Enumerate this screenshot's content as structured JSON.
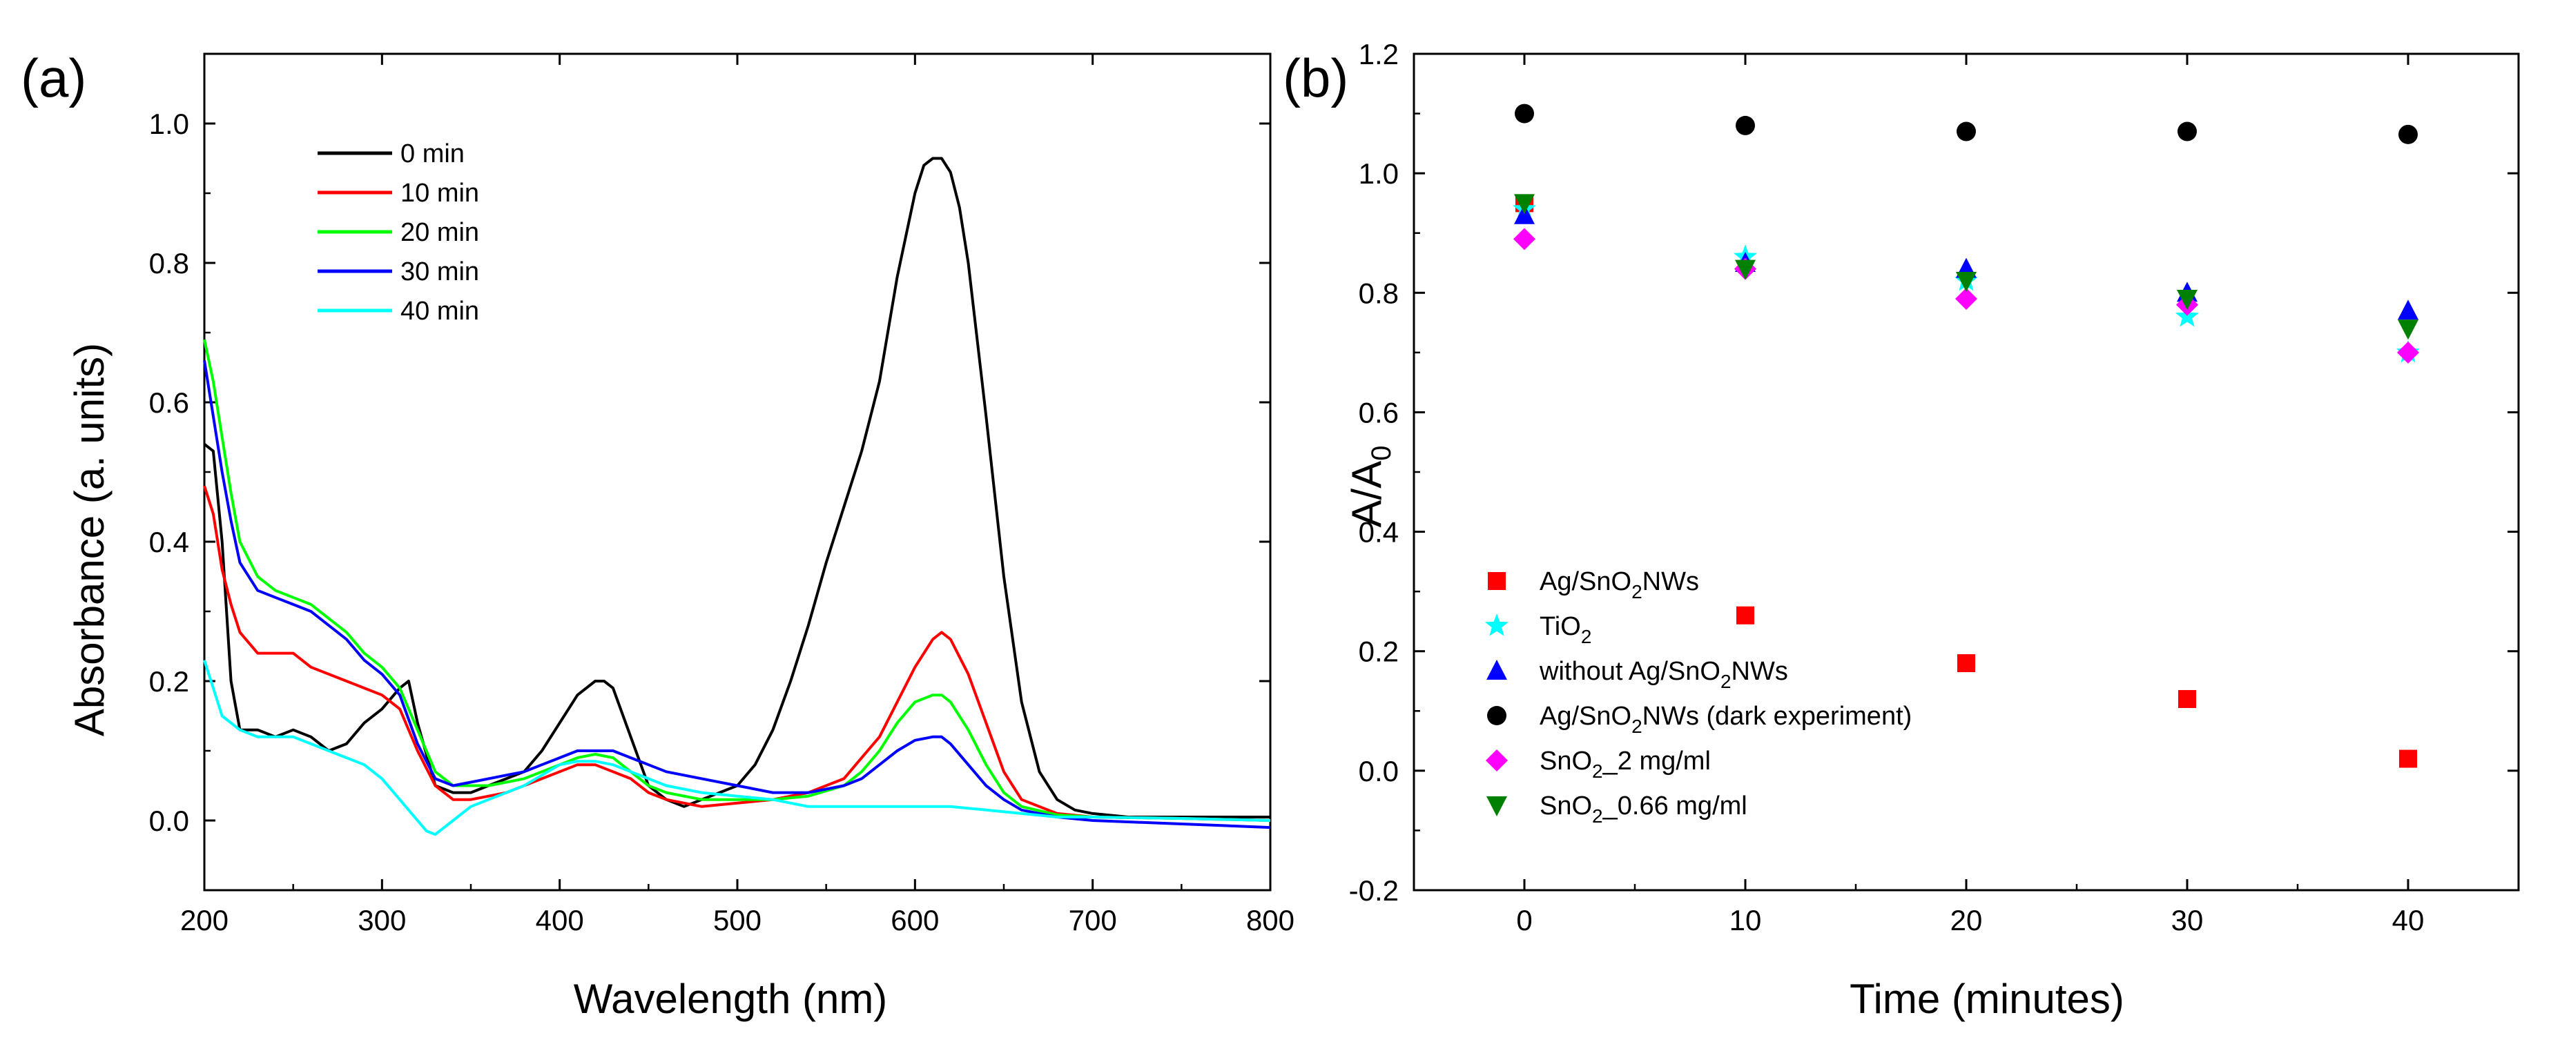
{
  "chart_data": [
    {
      "panel_label": "(a)",
      "type": "line",
      "xlabel": "Wavelength (nm)",
      "ylabel": "Absorbance (a. units)",
      "xlim": [
        200,
        800
      ],
      "ylim": [
        -0.1,
        1.1
      ],
      "xticks": [
        200,
        300,
        400,
        500,
        600,
        700,
        800
      ],
      "yticks": [
        0.0,
        0.2,
        0.4,
        0.6,
        0.8,
        1.0
      ],
      "xtick_labels": [
        "200",
        "300",
        "400",
        "500",
        "600",
        "700",
        "800"
      ],
      "ytick_labels": [
        "0.0",
        "0.2",
        "0.4",
        "0.6",
        "0.8",
        "1.0"
      ],
      "legend_position": "top-left",
      "series": [
        {
          "name": "0 min",
          "color": "#000000",
          "x": [
            200,
            205,
            210,
            215,
            220,
            230,
            240,
            250,
            260,
            270,
            280,
            290,
            300,
            310,
            315,
            320,
            330,
            340,
            350,
            360,
            370,
            380,
            390,
            400,
            410,
            420,
            425,
            430,
            440,
            450,
            460,
            470,
            480,
            490,
            500,
            510,
            520,
            530,
            540,
            550,
            560,
            570,
            580,
            590,
            600,
            605,
            610,
            615,
            620,
            625,
            630,
            640,
            650,
            660,
            670,
            680,
            690,
            700,
            720,
            750,
            800
          ],
          "y": [
            0.54,
            0.53,
            0.4,
            0.2,
            0.13,
            0.13,
            0.12,
            0.13,
            0.12,
            0.1,
            0.11,
            0.14,
            0.16,
            0.19,
            0.2,
            0.14,
            0.05,
            0.04,
            0.04,
            0.05,
            0.06,
            0.07,
            0.1,
            0.14,
            0.18,
            0.2,
            0.2,
            0.19,
            0.12,
            0.05,
            0.03,
            0.02,
            0.03,
            0.04,
            0.05,
            0.08,
            0.13,
            0.2,
            0.28,
            0.37,
            0.45,
            0.53,
            0.63,
            0.78,
            0.9,
            0.94,
            0.95,
            0.95,
            0.93,
            0.88,
            0.8,
            0.58,
            0.35,
            0.17,
            0.07,
            0.03,
            0.015,
            0.01,
            0.005,
            0.005,
            0.005
          ]
        },
        {
          "name": "10 min",
          "color": "#ff0000",
          "x": [
            200,
            205,
            210,
            215,
            220,
            230,
            240,
            250,
            260,
            270,
            280,
            290,
            300,
            310,
            320,
            330,
            340,
            350,
            360,
            370,
            380,
            390,
            400,
            410,
            420,
            430,
            440,
            450,
            460,
            480,
            500,
            520,
            540,
            560,
            570,
            580,
            590,
            600,
            610,
            615,
            620,
            630,
            640,
            650,
            660,
            680,
            700,
            750,
            800
          ],
          "y": [
            0.48,
            0.44,
            0.36,
            0.31,
            0.27,
            0.24,
            0.24,
            0.24,
            0.22,
            0.21,
            0.2,
            0.19,
            0.18,
            0.16,
            0.1,
            0.05,
            0.03,
            0.03,
            0.035,
            0.04,
            0.05,
            0.06,
            0.07,
            0.08,
            0.08,
            0.07,
            0.06,
            0.04,
            0.03,
            0.02,
            0.025,
            0.03,
            0.04,
            0.06,
            0.09,
            0.12,
            0.17,
            0.22,
            0.26,
            0.27,
            0.26,
            0.21,
            0.14,
            0.07,
            0.03,
            0.01,
            0.005,
            0.003,
            0.0
          ]
        },
        {
          "name": "20 min",
          "color": "#00ff00",
          "x": [
            200,
            205,
            210,
            215,
            220,
            230,
            240,
            250,
            260,
            270,
            280,
            290,
            300,
            310,
            320,
            330,
            340,
            350,
            360,
            370,
            380,
            390,
            400,
            410,
            420,
            430,
            440,
            450,
            460,
            480,
            500,
            520,
            540,
            560,
            570,
            580,
            590,
            600,
            610,
            615,
            620,
            630,
            640,
            650,
            660,
            680,
            700,
            750,
            800
          ],
          "y": [
            0.69,
            0.63,
            0.55,
            0.47,
            0.4,
            0.35,
            0.33,
            0.32,
            0.31,
            0.29,
            0.27,
            0.24,
            0.22,
            0.19,
            0.13,
            0.07,
            0.05,
            0.05,
            0.05,
            0.055,
            0.06,
            0.07,
            0.08,
            0.09,
            0.095,
            0.09,
            0.07,
            0.05,
            0.04,
            0.03,
            0.03,
            0.03,
            0.035,
            0.05,
            0.07,
            0.1,
            0.14,
            0.17,
            0.18,
            0.18,
            0.17,
            0.13,
            0.08,
            0.04,
            0.02,
            0.008,
            0.005,
            0.003,
            0.0
          ]
        },
        {
          "name": "30 min",
          "color": "#0000ff",
          "x": [
            200,
            205,
            210,
            215,
            220,
            230,
            240,
            250,
            260,
            270,
            280,
            290,
            300,
            310,
            320,
            330,
            340,
            350,
            360,
            370,
            380,
            390,
            400,
            410,
            420,
            430,
            440,
            450,
            460,
            480,
            500,
            520,
            540,
            560,
            570,
            580,
            590,
            600,
            610,
            615,
            620,
            630,
            640,
            650,
            660,
            680,
            700,
            750,
            800
          ],
          "y": [
            0.66,
            0.58,
            0.5,
            0.43,
            0.37,
            0.33,
            0.32,
            0.31,
            0.3,
            0.28,
            0.26,
            0.23,
            0.21,
            0.18,
            0.11,
            0.06,
            0.05,
            0.055,
            0.06,
            0.065,
            0.07,
            0.08,
            0.09,
            0.1,
            0.1,
            0.1,
            0.09,
            0.08,
            0.07,
            0.06,
            0.05,
            0.04,
            0.04,
            0.05,
            0.06,
            0.08,
            0.1,
            0.115,
            0.12,
            0.12,
            0.11,
            0.08,
            0.05,
            0.03,
            0.015,
            0.005,
            0.0,
            -0.005,
            -0.01
          ]
        },
        {
          "name": "40 min",
          "color": "#00ffff",
          "x": [
            200,
            205,
            210,
            220,
            230,
            240,
            250,
            260,
            270,
            280,
            290,
            300,
            310,
            320,
            325,
            330,
            335,
            340,
            350,
            360,
            370,
            380,
            390,
            400,
            410,
            420,
            430,
            440,
            450,
            460,
            480,
            500,
            520,
            540,
            560,
            580,
            600,
            610,
            620,
            640,
            660,
            680,
            700,
            750,
            800
          ],
          "y": [
            0.23,
            0.19,
            0.15,
            0.13,
            0.12,
            0.12,
            0.12,
            0.11,
            0.1,
            0.09,
            0.08,
            0.06,
            0.03,
            0.0,
            -0.015,
            -0.02,
            -0.01,
            0.0,
            0.02,
            0.03,
            0.04,
            0.05,
            0.065,
            0.08,
            0.085,
            0.085,
            0.08,
            0.07,
            0.06,
            0.05,
            0.04,
            0.035,
            0.03,
            0.02,
            0.02,
            0.02,
            0.02,
            0.02,
            0.02,
            0.015,
            0.01,
            0.005,
            0.005,
            0.003,
            0.0
          ]
        }
      ]
    },
    {
      "panel_label": "(b)",
      "type": "scatter",
      "xlabel": "Time (minutes)",
      "ylabel": "A/A",
      "ylabel_subscript": "0",
      "xlim": [
        -5,
        45
      ],
      "ylim": [
        -0.2,
        1.2
      ],
      "xticks": [
        0,
        10,
        20,
        30,
        40
      ],
      "yticks": [
        -0.2,
        0.0,
        0.2,
        0.4,
        0.6,
        0.8,
        1.0,
        1.2
      ],
      "xtick_labels": [
        "0",
        "10",
        "20",
        "30",
        "40"
      ],
      "ytick_labels": [
        "-0.2",
        "0.0",
        "0.2",
        "0.4",
        "0.6",
        "0.8",
        "1.0",
        "1.2"
      ],
      "legend_position": "bottom-left",
      "series": [
        {
          "name": "Ag/SnO2NWs",
          "label_parts": [
            "Ag/SnO",
            "2",
            "NWs"
          ],
          "marker": "square",
          "color": "#ff0000",
          "x": [
            0,
            10,
            20,
            30,
            40
          ],
          "y": [
            0.95,
            0.26,
            0.18,
            0.12,
            0.02
          ]
        },
        {
          "name": "TiO2",
          "label_parts": [
            "TiO",
            "2",
            ""
          ],
          "marker": "star",
          "color": "#00ffff",
          "x": [
            0,
            10,
            20,
            30,
            40
          ],
          "y": [
            0.94,
            0.86,
            0.82,
            0.76,
            0.7
          ]
        },
        {
          "name": "without Ag/SnO2NWs",
          "label_parts": [
            "without Ag/SnO",
            "2",
            "NWs"
          ],
          "marker": "triangle-up",
          "color": "#0000ff",
          "x": [
            0,
            10,
            20,
            30,
            40
          ],
          "y": [
            0.93,
            0.85,
            0.84,
            0.8,
            0.77
          ]
        },
        {
          "name": "Ag/SnO2NWs (dark experiment)",
          "label_parts": [
            "Ag/SnO",
            "2",
            "NWs (dark experiment)"
          ],
          "marker": "circle",
          "color": "#000000",
          "x": [
            0,
            10,
            20,
            30,
            40
          ],
          "y": [
            1.1,
            1.08,
            1.07,
            1.07,
            1.065
          ]
        },
        {
          "name": "SnO2_2 mg/ml",
          "label_parts": [
            "SnO",
            "2",
            "_2 mg/ml"
          ],
          "marker": "diamond",
          "color": "#ff00ff",
          "x": [
            0,
            10,
            20,
            30,
            40
          ],
          "y": [
            0.89,
            0.84,
            0.79,
            0.78,
            0.7
          ]
        },
        {
          "name": "SnO2_0.66 mg/ml",
          "label_parts": [
            "SnO",
            "2",
            "_0.66 mg/ml"
          ],
          "marker": "triangle-down",
          "color": "#008000",
          "x": [
            0,
            10,
            20,
            30,
            40
          ],
          "y": [
            0.95,
            0.84,
            0.82,
            0.79,
            0.74
          ]
        }
      ]
    }
  ]
}
